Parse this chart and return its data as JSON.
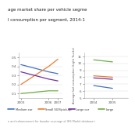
{
  "title1": "age market share per vehicle segme",
  "title2": "l consumption per segment, 2014-1",
  "left": {
    "x": [
      2003,
      2006,
      2007
    ],
    "series": [
      {
        "key": "medium_car",
        "y": [
          0.42,
          0.34,
          0.32
        ],
        "color": "#4472C4",
        "label": "Medium car"
      },
      {
        "key": "small_suv",
        "y": [
          0.2,
          0.4,
          0.48
        ],
        "color": "#ED7D31",
        "label": "Small SUV/pick-up"
      },
      {
        "key": "large_car",
        "y": [
          0.34,
          0.26,
          0.24
        ],
        "color": "#7030A0",
        "label": "Large car"
      },
      {
        "key": "large",
        "y": [
          0.1,
          0.13,
          0.13
        ],
        "color": "#70AD47",
        "label": "Large"
      }
    ],
    "ylim": [
      0.05,
      0.55
    ],
    "xlim": [
      2002.8,
      2007.5
    ],
    "xticks": [
      2003,
      2006,
      2007
    ],
    "yticks": [
      0.1,
      0.2,
      0.3,
      0.4,
      0.5
    ]
  },
  "right": {
    "x": [
      2004,
      2005
    ],
    "series": [
      {
        "key": "large",
        "y": [
          10.5,
          10.2
        ],
        "color": "#70AD47",
        "label": "Large"
      },
      {
        "key": "small_suv",
        "y": [
          8.2,
          8.0
        ],
        "color": "#ED7D31",
        "label": "Small SUV/pick-up"
      },
      {
        "key": "large_car",
        "y": [
          7.9,
          7.7
        ],
        "color": "#7030A0",
        "label": "Large car"
      },
      {
        "key": "medium_car",
        "y": [
          6.8,
          6.4
        ],
        "color": "#4472C4",
        "label": "Medium car"
      }
    ],
    "ylim": [
      5.0,
      11.5
    ],
    "xlim": [
      2003.5,
      2005.8
    ],
    "xticks": [
      2004,
      2005
    ],
    "yticks": [
      5.0,
      6.0,
      7.0,
      8.0,
      9.0,
      10.0,
      11.0
    ],
    "ylabel": "Average fuel consumption (Light Trucks)"
  },
  "legend": [
    {
      "label": "Medium car",
      "color": "#4472C4"
    },
    {
      "label": "Small SUV/pick-up",
      "color": "#ED7D31"
    },
    {
      "label": "Large car",
      "color": "#7030A0"
    },
    {
      "label": "Large",
      "color": "#70AD47"
    }
  ],
  "footer": "n and enhancement for broader coverage of IHS Markit database i",
  "bg": "#FFFFFF",
  "grid_color": "#D9D9D9",
  "spine_color": "#AAAAAA",
  "tick_color": "#555555"
}
